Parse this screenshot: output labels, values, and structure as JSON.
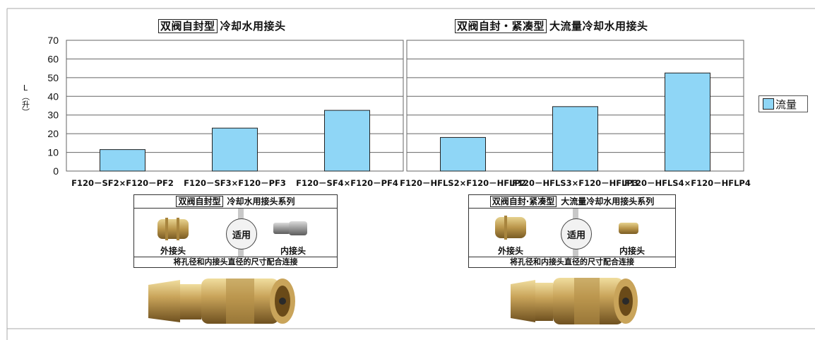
{
  "chart_data": [
    {
      "type": "bar",
      "title_boxed": "双阀自封型",
      "title": "冷却水用接头",
      "categories": [
        "F120－SF2×F120－PF2",
        "F120－SF3×F120－PF3",
        "F120－SF4×F120－PF4"
      ],
      "series": [
        {
          "name": "流量",
          "values": [
            11.5,
            23,
            32.5
          ]
        }
      ],
      "ylabel": "L（升）",
      "ylim": [
        0,
        70
      ],
      "yticks": [
        0,
        10,
        20,
        30,
        40,
        50,
        60,
        70
      ],
      "grid": true
    },
    {
      "type": "bar",
      "title_boxed": "双阀自封・紧凑型",
      "title": "大流量冷却水用接头",
      "categories": [
        "F120－HFLS2×F120－HFLP2",
        "F120－HFLS3×F120－HFLP3",
        "F120－HFLS4×F120－HFLP4"
      ],
      "series": [
        {
          "name": "流量",
          "values": [
            18,
            34.5,
            52.5
          ]
        }
      ],
      "ylim": [
        0,
        70
      ],
      "grid": true
    }
  ],
  "y_axis_label_top": "L",
  "y_axis_label_bottom": "（升）",
  "legend_label": "流量",
  "bar_color": "#8fd6f6",
  "panels": [
    {
      "title_boxed": "双阀自封型",
      "title": "冷却水用接头系列",
      "left_caption": "外接头",
      "badge": "适用",
      "right_caption": "内接头",
      "footer": "将孔径和内接头直径的尺寸配合连接"
    },
    {
      "title_boxed": "双阀自封·紧凑型",
      "title": "大流量冷却水用接头系列",
      "left_caption": "外接头",
      "badge": "适用",
      "right_caption": "内接头",
      "footer": "将孔径和内接头直径的尺寸配合连接"
    }
  ]
}
